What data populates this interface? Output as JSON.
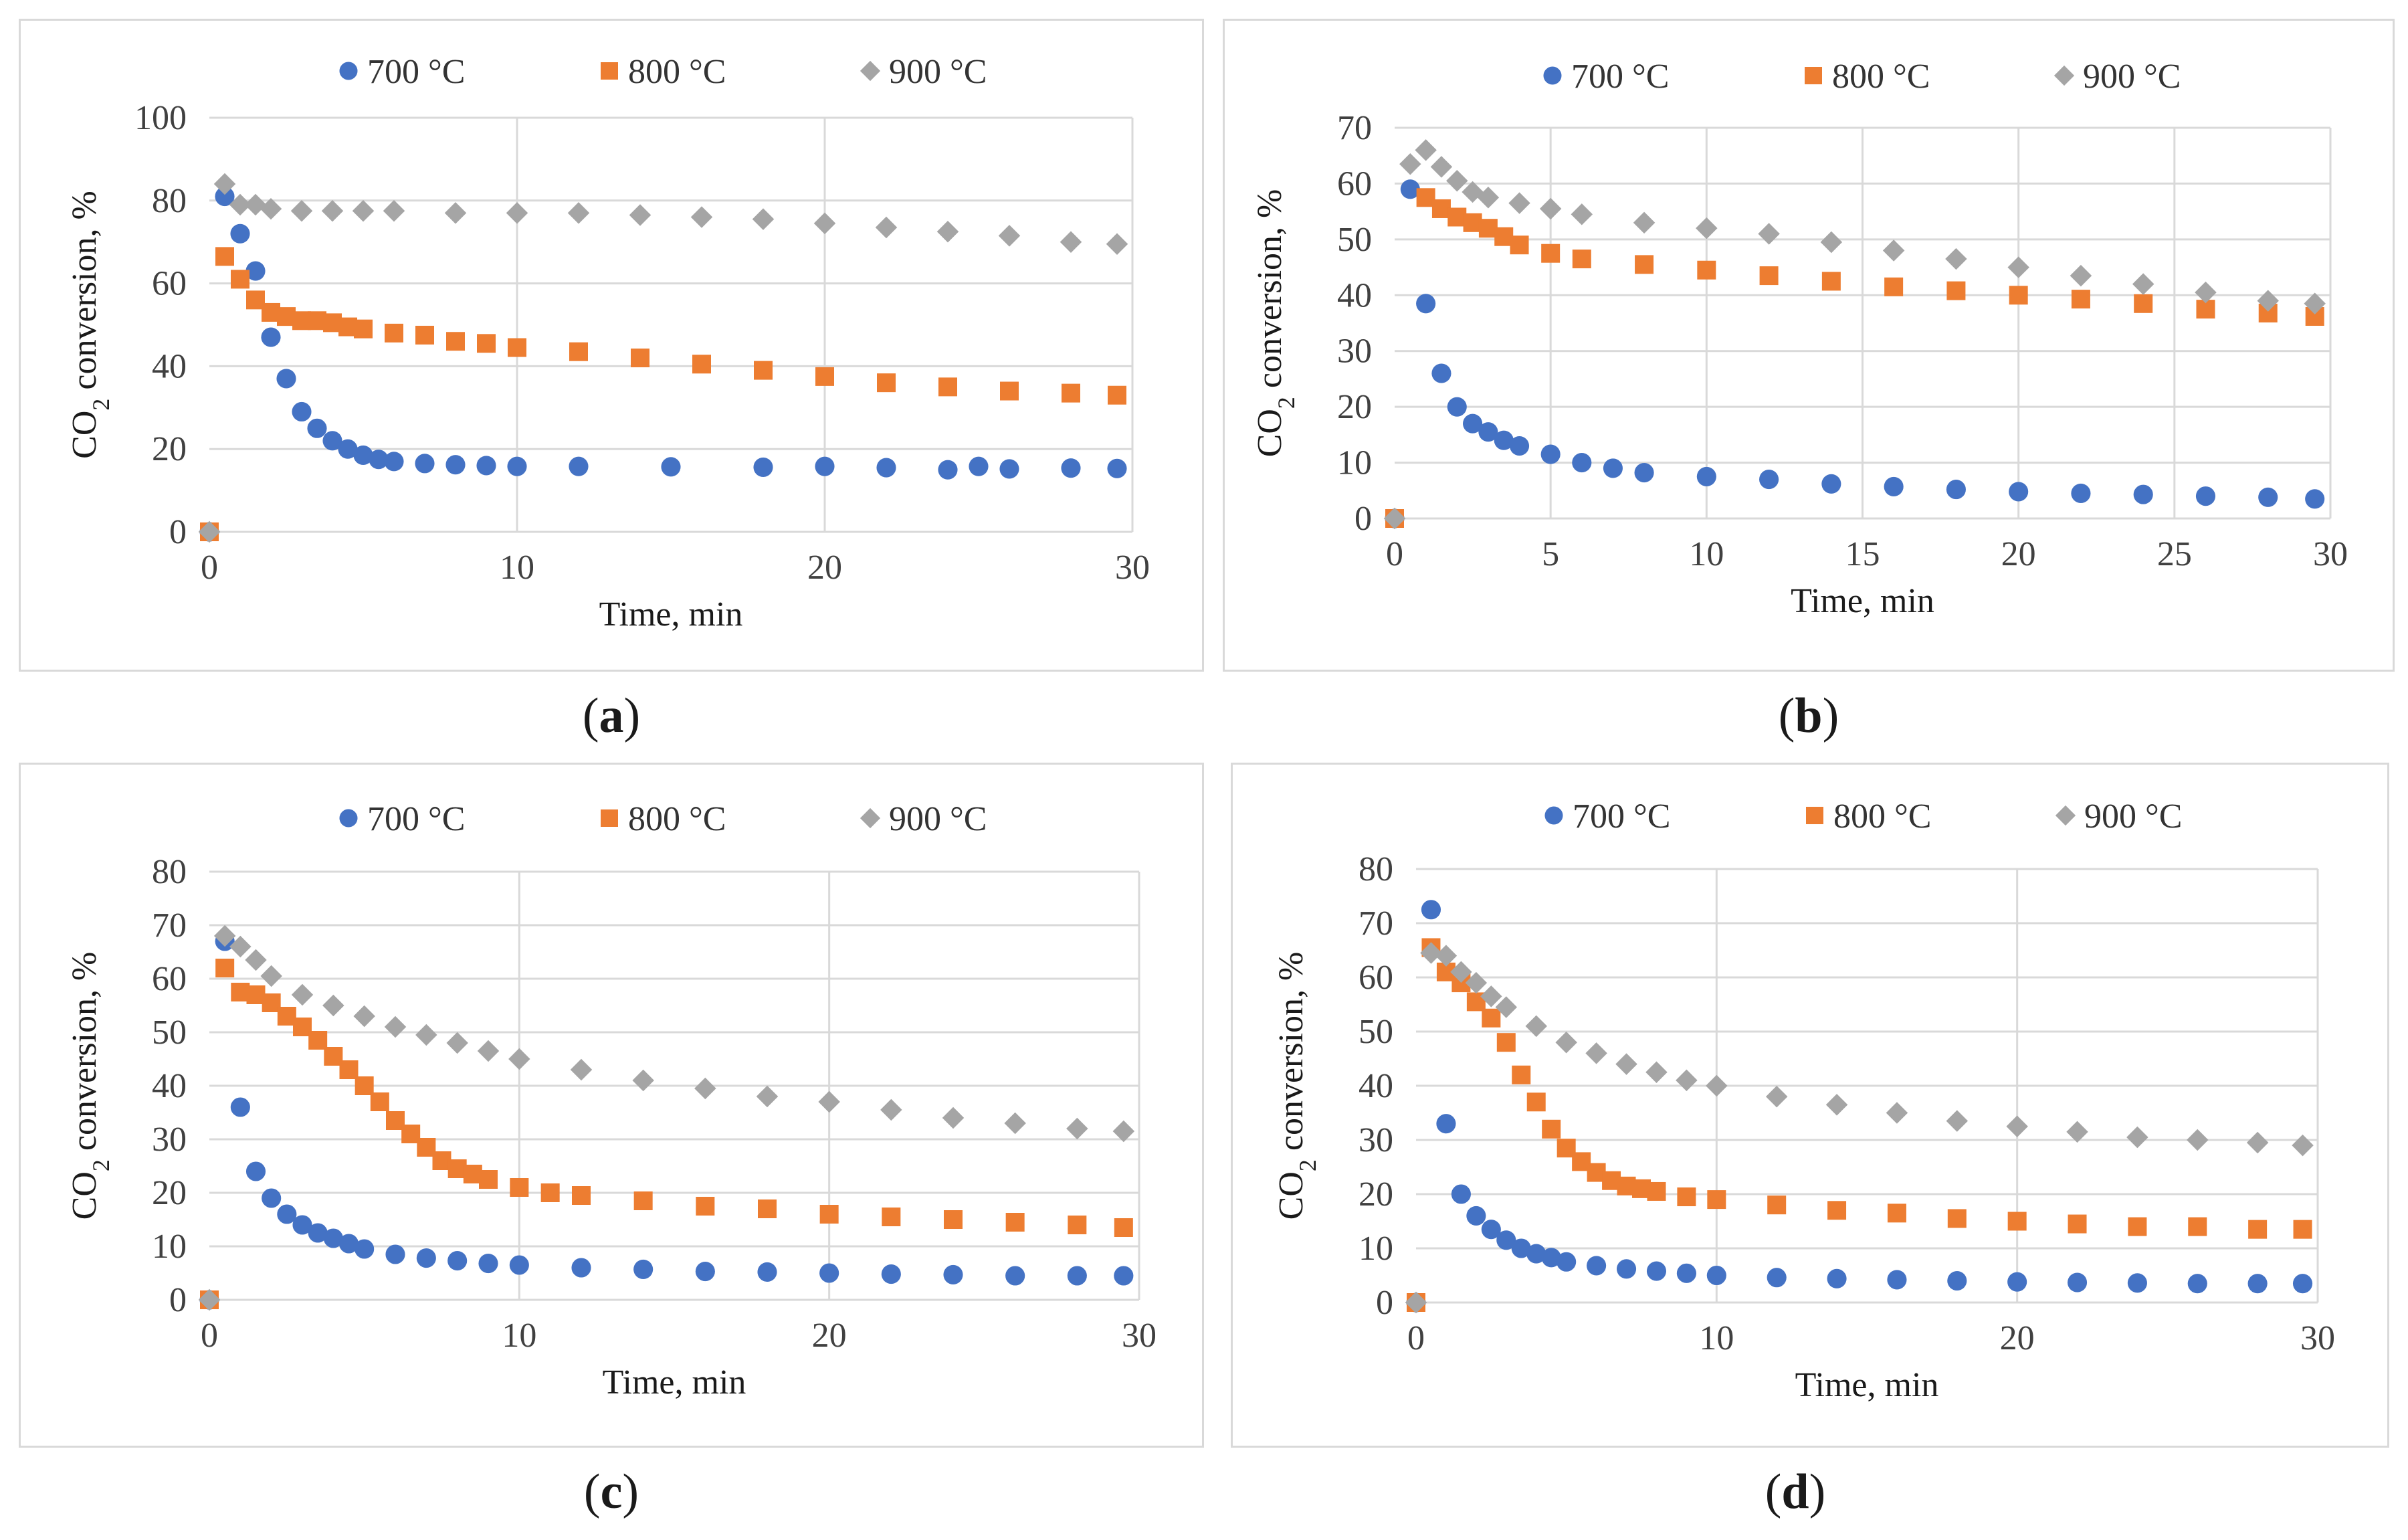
{
  "colors": {
    "s700": "#4472c4",
    "s800": "#ed7d31",
    "s900": "#a5a5a5",
    "grid": "#d9d9d9"
  },
  "panels": [
    {
      "label_open": "(",
      "label_letter": "a",
      "label_close": ")"
    },
    {
      "label_open": "(",
      "label_letter": "b",
      "label_close": ")"
    },
    {
      "label_open": "(",
      "label_letter": "c",
      "label_close": ")"
    },
    {
      "label_open": "(",
      "label_letter": "d",
      "label_close": ")"
    }
  ],
  "chart_data": [
    {
      "type": "scatter",
      "panel": "a",
      "xlabel": "Time, min",
      "ylabel_prefix": "CO",
      "ylabel_sub": "2",
      "ylabel_suffix": " conversion, %",
      "xlim": [
        0,
        30
      ],
      "ylim": [
        0,
        100
      ],
      "xticks": [
        0,
        10,
        20,
        30
      ],
      "yticks": [
        0,
        20,
        40,
        60,
        80,
        100
      ],
      "legend": [
        "700 °C",
        "800 °C",
        "900 °C"
      ],
      "grid": "vertical",
      "series": [
        {
          "name": "700 °C",
          "marker": "circle",
          "x": [
            0,
            0.5,
            1,
            1.5,
            2,
            2.5,
            3,
            3.5,
            4,
            4.5,
            5,
            5.5,
            6,
            7,
            8,
            9,
            10,
            12,
            15,
            18,
            20,
            22,
            24,
            25,
            26,
            28,
            29.5
          ],
          "y": [
            0,
            81,
            72,
            63,
            47,
            37,
            29,
            25,
            22,
            20,
            18.5,
            17.5,
            17,
            16.5,
            16.2,
            16,
            15.8,
            15.8,
            15.7,
            15.6,
            15.8,
            15.5,
            15,
            15.8,
            15.2,
            15.4,
            15.3
          ]
        },
        {
          "name": "800 °C",
          "marker": "square",
          "x": [
            0,
            0.5,
            1,
            1.5,
            2,
            2.5,
            3,
            3.5,
            4,
            4.5,
            5,
            6,
            7,
            8,
            9,
            10,
            12,
            14,
            16,
            18,
            20,
            22,
            24,
            26,
            28,
            29.5
          ],
          "y": [
            0,
            66.5,
            61,
            56,
            53,
            52,
            51,
            51,
            50.5,
            49.5,
            49,
            48,
            47.5,
            46,
            45.5,
            44.5,
            43.5,
            42,
            40.5,
            39,
            37.5,
            36,
            35,
            34,
            33.5,
            33
          ]
        },
        {
          "name": "900 °C",
          "marker": "diamond",
          "x": [
            0,
            0.5,
            1,
            1.5,
            2,
            3,
            4,
            5,
            6,
            8,
            10,
            12,
            14,
            16,
            18,
            20,
            22,
            24,
            26,
            28,
            29.5
          ],
          "y": [
            0,
            84,
            79,
            79,
            78,
            77.5,
            77.5,
            77.5,
            77.5,
            77,
            77,
            77,
            76.5,
            76,
            75.5,
            74.5,
            73.5,
            72.5,
            71.5,
            70,
            69.5
          ]
        }
      ]
    },
    {
      "type": "scatter",
      "panel": "b",
      "xlabel": "Time, min",
      "ylabel_prefix": "CO",
      "ylabel_sub": "2",
      "ylabel_suffix": " conversion, %",
      "xlim": [
        0,
        30
      ],
      "ylim": [
        0,
        70
      ],
      "xticks": [
        0,
        5,
        10,
        15,
        20,
        25,
        30
      ],
      "yticks": [
        0,
        10,
        20,
        30,
        40,
        50,
        60,
        70
      ],
      "legend": [
        "700 °C",
        "800 °C",
        "900 °C"
      ],
      "grid": "both",
      "series": [
        {
          "name": "700 °C",
          "marker": "circle",
          "x": [
            0,
            0.5,
            1,
            1.5,
            2,
            2.5,
            3,
            3.5,
            4,
            5,
            6,
            7,
            8,
            10,
            12,
            14,
            16,
            18,
            20,
            22,
            24,
            26,
            28,
            29.5
          ],
          "y": [
            0,
            59,
            38.5,
            26,
            20,
            17,
            15.5,
            14,
            13,
            11.5,
            10,
            9,
            8.2,
            7.5,
            7,
            6.2,
            5.7,
            5.2,
            4.8,
            4.5,
            4.3,
            4,
            3.8,
            3.5
          ]
        },
        {
          "name": "800 °C",
          "marker": "square",
          "x": [
            0,
            1,
            1.5,
            2,
            2.5,
            3,
            3.5,
            4,
            5,
            6,
            8,
            10,
            12,
            14,
            16,
            18,
            20,
            22,
            24,
            26,
            28,
            29.5
          ],
          "y": [
            0,
            57.5,
            55.5,
            54,
            53,
            52,
            50.5,
            49,
            47.5,
            46.5,
            45.5,
            44.5,
            43.5,
            42.5,
            41.5,
            40.8,
            40,
            39.3,
            38.5,
            37.5,
            36.8,
            36.2
          ]
        },
        {
          "name": "900 °C",
          "marker": "diamond",
          "x": [
            0,
            0.5,
            1,
            1.5,
            2,
            2.5,
            3,
            4,
            5,
            6,
            8,
            10,
            12,
            14,
            16,
            18,
            20,
            22,
            24,
            26,
            28,
            29.5
          ],
          "y": [
            0,
            63.5,
            66,
            63,
            60.5,
            58.5,
            57.5,
            56.5,
            55.5,
            54.5,
            53,
            52,
            51,
            49.5,
            48,
            46.5,
            45,
            43.5,
            42,
            40.5,
            39,
            38.5
          ]
        }
      ]
    },
    {
      "type": "scatter",
      "panel": "c",
      "xlabel": "Time, min",
      "ylabel_prefix": "CO",
      "ylabel_sub": "2",
      "ylabel_suffix": " conversion, %",
      "xlim": [
        0,
        30
      ],
      "ylim": [
        0,
        80
      ],
      "xticks": [
        0,
        10,
        20,
        30
      ],
      "yticks": [
        0,
        10,
        20,
        30,
        40,
        50,
        60,
        70,
        80
      ],
      "legend": [
        "700 °C",
        "800 °C",
        "900 °C"
      ],
      "grid": "both",
      "series": [
        {
          "name": "700 °C",
          "marker": "circle",
          "x": [
            0,
            0.5,
            1,
            1.5,
            2,
            2.5,
            3,
            3.5,
            4,
            4.5,
            5,
            6,
            7,
            8,
            9,
            10,
            12,
            14,
            16,
            18,
            20,
            22,
            24,
            26,
            28,
            29.5
          ],
          "y": [
            0,
            67,
            36,
            24,
            19,
            16,
            14,
            12.5,
            11.5,
            10.5,
            9.5,
            8.5,
            7.8,
            7.3,
            6.8,
            6.5,
            6,
            5.7,
            5.3,
            5.2,
            5,
            4.8,
            4.7,
            4.5,
            4.5,
            4.5
          ]
        },
        {
          "name": "800 °C",
          "marker": "square",
          "x": [
            0,
            0.5,
            1,
            1.5,
            2,
            2.5,
            3,
            3.5,
            4,
            4.5,
            5,
            5.5,
            6,
            6.5,
            7,
            7.5,
            8,
            8.5,
            9,
            10,
            11,
            12,
            14,
            16,
            18,
            20,
            22,
            24,
            26,
            28,
            29.5
          ],
          "y": [
            0,
            62,
            57.5,
            57,
            55.5,
            53,
            51,
            48.5,
            45.5,
            43,
            40,
            37,
            33.5,
            31,
            28.5,
            26,
            24.5,
            23.5,
            22.5,
            21,
            20,
            19.5,
            18.5,
            17.5,
            17,
            16,
            15.5,
            15,
            14.5,
            14,
            13.5
          ]
        },
        {
          "name": "900 °C",
          "marker": "diamond",
          "x": [
            0,
            0.5,
            1,
            1.5,
            2,
            3,
            4,
            5,
            6,
            7,
            8,
            9,
            10,
            12,
            14,
            16,
            18,
            20,
            22,
            24,
            26,
            28,
            29.5
          ],
          "y": [
            0,
            68,
            66,
            63.5,
            60.5,
            57,
            55,
            53,
            51,
            49.5,
            48,
            46.5,
            45,
            43,
            41,
            39.5,
            38,
            37,
            35.5,
            34,
            33,
            32,
            31.5
          ]
        }
      ]
    },
    {
      "type": "scatter",
      "panel": "d",
      "xlabel": "Time, min",
      "ylabel_prefix": "CO",
      "ylabel_sub": "2",
      "ylabel_suffix": " conversion, %",
      "xlim": [
        0,
        30
      ],
      "ylim": [
        0,
        80
      ],
      "xticks": [
        0,
        10,
        20,
        30
      ],
      "yticks": [
        0,
        10,
        20,
        30,
        40,
        50,
        60,
        70,
        80
      ],
      "legend": [
        "700 °C",
        "800 °C",
        "900 °C"
      ],
      "grid": "both",
      "series": [
        {
          "name": "700 °C",
          "marker": "circle",
          "x": [
            0,
            0.5,
            1,
            1.5,
            2,
            2.5,
            3,
            3.5,
            4,
            4.5,
            5,
            6,
            7,
            8,
            9,
            10,
            12,
            14,
            16,
            18,
            20,
            22,
            24,
            26,
            28,
            29.5
          ],
          "y": [
            0,
            72.5,
            33,
            20,
            16,
            13.5,
            11.5,
            10,
            9,
            8.3,
            7.5,
            6.8,
            6.2,
            5.8,
            5.4,
            5,
            4.6,
            4.4,
            4.2,
            4,
            3.8,
            3.7,
            3.6,
            3.5,
            3.5,
            3.5
          ]
        },
        {
          "name": "800 °C",
          "marker": "square",
          "x": [
            0,
            0.5,
            1,
            1.5,
            2,
            2.5,
            3,
            3.5,
            4,
            4.5,
            5,
            5.5,
            6,
            6.5,
            7,
            7.5,
            8,
            9,
            10,
            12,
            14,
            16,
            18,
            20,
            22,
            24,
            26,
            28,
            29.5
          ],
          "y": [
            0,
            65.5,
            61,
            59,
            55.5,
            52.5,
            48,
            42,
            37,
            32,
            28.5,
            26,
            24,
            22.5,
            21.5,
            21,
            20.5,
            19.5,
            19,
            18,
            17,
            16.5,
            15.5,
            15,
            14.5,
            14,
            14,
            13.5,
            13.5
          ]
        },
        {
          "name": "900 °C",
          "marker": "diamond",
          "x": [
            0,
            0.5,
            1,
            1.5,
            2,
            2.5,
            3,
            4,
            5,
            6,
            7,
            8,
            9,
            10,
            12,
            14,
            16,
            18,
            20,
            22,
            24,
            26,
            28,
            29.5
          ],
          "y": [
            0,
            64.5,
            64,
            61,
            59,
            56.5,
            54.5,
            51,
            48,
            46,
            44,
            42.5,
            41,
            40,
            38,
            36.5,
            35,
            33.5,
            32.5,
            31.5,
            30.5,
            30,
            29.5,
            29
          ]
        }
      ]
    }
  ]
}
